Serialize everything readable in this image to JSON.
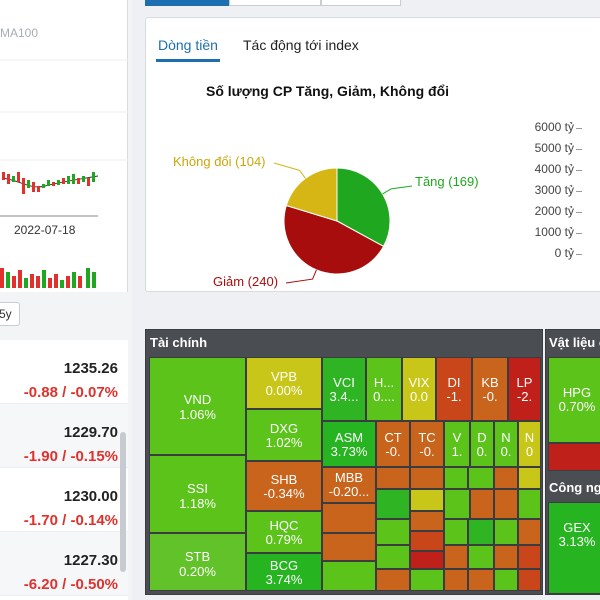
{
  "left": {
    "ma_label": "MA100",
    "date_label": "2022-07-18",
    "period_button": "5y",
    "indices": [
      {
        "value": "1235.26",
        "change": "-0.88 / -0.07%"
      },
      {
        "value": "1229.70",
        "change": "-1.90 / -0.15%"
      },
      {
        "value": "1230.00",
        "change": "-1.70 / -0.14%"
      },
      {
        "value": "1227.30",
        "change": "-6.20 / -0.50%"
      }
    ]
  },
  "tabs": {
    "items": [
      "Dòng tiền",
      "Tác động tới index"
    ],
    "active": 0
  },
  "chart_data": {
    "type": "pie",
    "title": "Số lượng CP Tăng, Giảm, Không đổi",
    "slices": [
      {
        "label": "Tăng (169)",
        "value": 169,
        "color": "#1fa81f"
      },
      {
        "label": "Giảm (240)",
        "value": 240,
        "color": "#a80d0d"
      },
      {
        "label": "Không đổi (104)",
        "value": 104,
        "color": "#d6b614"
      }
    ],
    "secondary_axis_ticks": [
      "6000 tỷ",
      "5000 tỷ",
      "4000 tỷ",
      "3000 tỷ",
      "2000 tỷ",
      "1000 tỷ",
      "0 tỷ"
    ]
  },
  "heatmap": {
    "sectors": [
      {
        "name": "Tài chính"
      },
      {
        "name": "Vật liệu c"
      },
      {
        "name": "Công ng"
      }
    ],
    "stocks": [
      {
        "ticker": "VND",
        "change": "1.06%",
        "color": "#5cc31b"
      },
      {
        "ticker": "SSI",
        "change": "1.18%",
        "color": "#5cc31b"
      },
      {
        "ticker": "STB",
        "change": "0.20%",
        "color": "#62c22a"
      },
      {
        "ticker": "VPB",
        "change": "0.00%",
        "color": "#c9c61a"
      },
      {
        "ticker": "DXG",
        "change": "1.02%",
        "color": "#5cc31b"
      },
      {
        "ticker": "SHB",
        "change": "-0.34%",
        "color": "#c8641c"
      },
      {
        "ticker": "HQC",
        "change": "0.79%",
        "color": "#5cc31b"
      },
      {
        "ticker": "BCG",
        "change": "3.74%",
        "color": "#26b520"
      },
      {
        "ticker": "VCI",
        "change": "3.4...",
        "color": "#2fb524"
      },
      {
        "ticker": "H...",
        "change": "0....",
        "color": "#5cc31b"
      },
      {
        "ticker": "VIX",
        "change": "0.0",
        "color": "#c9c61a"
      },
      {
        "ticker": "DI",
        "change": "-1.",
        "color": "#c8461a"
      },
      {
        "ticker": "KB",
        "change": "-0.",
        "color": "#c8641c"
      },
      {
        "ticker": "LP",
        "change": "-2.",
        "color": "#c0201a"
      },
      {
        "ticker": "ASM",
        "change": "3.73%",
        "color": "#26b520"
      },
      {
        "ticker": "MBB",
        "change": "-0.20...",
        "color": "#c8641c"
      },
      {
        "ticker": "CT",
        "change": "-0.",
        "color": "#c8641c"
      },
      {
        "ticker": "TC",
        "change": "-0.",
        "color": "#c8641c"
      },
      {
        "ticker": "V",
        "change": "1.",
        "color": "#5cc31b"
      },
      {
        "ticker": "D",
        "change": "0.",
        "color": "#5cc31b"
      },
      {
        "ticker": "N",
        "change": "0.",
        "color": "#5cc31b"
      },
      {
        "ticker": "N",
        "change": "0",
        "color": "#c9c61a"
      },
      {
        "ticker": "HPG",
        "change": "0.70%",
        "color": "#5cc31b"
      },
      {
        "ticker": "GEX",
        "change": "3.13%",
        "color": "#26b520"
      }
    ]
  }
}
